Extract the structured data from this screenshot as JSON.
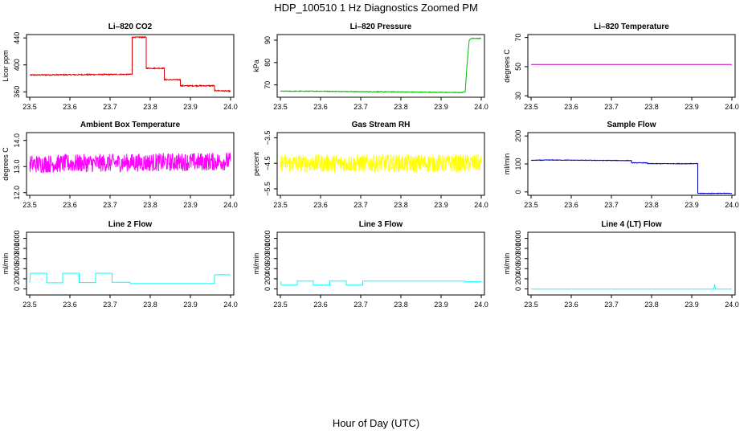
{
  "figure_title": "HDP_100510  1 Hz Diagnostics Zoomed PM",
  "footer_label": "Hour of Day (UTC)",
  "chart_data": [
    {
      "type": "line",
      "title": "Li–820 CO2",
      "ylabel": "Licor ppm",
      "color": "#e00000",
      "xlim": [
        23.5,
        24.0
      ],
      "ylim": [
        352,
        445
      ],
      "xticks": [
        23.5,
        23.6,
        23.7,
        23.8,
        23.9,
        24.0
      ],
      "yticks": [
        360,
        400,
        440
      ],
      "noise": 0.8,
      "series": [
        [
          23.5,
          385
        ],
        [
          23.755,
          386
        ],
        [
          23.755,
          441
        ],
        [
          23.79,
          441
        ],
        [
          23.79,
          395
        ],
        [
          23.835,
          395
        ],
        [
          23.835,
          378
        ],
        [
          23.875,
          378
        ],
        [
          23.875,
          369
        ],
        [
          23.96,
          369
        ],
        [
          23.96,
          362
        ],
        [
          24.0,
          361
        ]
      ]
    },
    {
      "type": "line",
      "title": "Li–820 Pressure",
      "ylabel": "kPa",
      "color": "#00c000",
      "xlim": [
        23.5,
        24.0
      ],
      "ylim": [
        64.5,
        92.5
      ],
      "xticks": [
        23.5,
        23.6,
        23.7,
        23.8,
        23.9,
        24.0
      ],
      "yticks": [
        70,
        80,
        90
      ],
      "noise": 0.15,
      "series": [
        [
          23.5,
          67.2
        ],
        [
          23.6,
          67.2
        ],
        [
          23.7,
          67.0
        ],
        [
          23.8,
          66.9
        ],
        [
          23.95,
          66.6
        ],
        [
          23.96,
          67.0
        ],
        [
          23.965,
          80
        ],
        [
          23.97,
          90
        ],
        [
          23.975,
          90.8
        ],
        [
          24.0,
          90.8
        ]
      ]
    },
    {
      "type": "line",
      "title": "Li–820 Temperature",
      "ylabel": "degrees C",
      "color": "#c000c0",
      "xlim": [
        23.5,
        24.0
      ],
      "ylim": [
        29,
        72
      ],
      "xticks": [
        23.5,
        23.6,
        23.7,
        23.8,
        23.9,
        24.0
      ],
      "yticks": [
        30,
        50,
        70
      ],
      "noise": 0,
      "series": [
        [
          23.5,
          51.5
        ],
        [
          24.0,
          51.5
        ]
      ]
    },
    {
      "type": "line",
      "title": "Ambient Box Temperature",
      "ylabel": "degrees C",
      "color": "#ff00ff",
      "xlim": [
        23.5,
        24.0
      ],
      "ylim": [
        11.9,
        14.3
      ],
      "xticks": [
        23.5,
        23.6,
        23.7,
        23.8,
        23.9,
        24.0
      ],
      "yticks": [
        12.0,
        13.0,
        14.0
      ],
      "noise": 0.35,
      "series": [
        [
          23.5,
          13.1
        ],
        [
          24.0,
          13.2
        ]
      ]
    },
    {
      "type": "line",
      "title": "Gas Stream RH",
      "ylabel": "percent",
      "color": "#ffff00",
      "xlim": [
        23.5,
        24.0
      ],
      "ylim": [
        -5.75,
        -3.3
      ],
      "xticks": [
        23.5,
        23.6,
        23.7,
        23.8,
        23.9,
        24.0
      ],
      "yticks": [
        -5.5,
        -4.5,
        -3.5
      ],
      "noise": 0.35,
      "series": [
        [
          23.5,
          -4.5
        ],
        [
          24.0,
          -4.5
        ]
      ]
    },
    {
      "type": "line",
      "title": "Sample Flow",
      "ylabel": "ml/min",
      "color": "#0000cc",
      "xlim": [
        23.5,
        24.0
      ],
      "ylim": [
        -12,
        212
      ],
      "xticks": [
        23.5,
        23.6,
        23.7,
        23.8,
        23.9,
        24.0
      ],
      "yticks": [
        0,
        100,
        200
      ],
      "noise": 1,
      "series": [
        [
          23.5,
          113
        ],
        [
          23.55,
          114
        ],
        [
          23.65,
          113
        ],
        [
          23.75,
          112
        ],
        [
          23.75,
          104
        ],
        [
          23.79,
          104
        ],
        [
          23.79,
          101
        ],
        [
          23.915,
          101
        ],
        [
          23.915,
          -5
        ],
        [
          24.0,
          -5
        ]
      ]
    },
    {
      "type": "line",
      "title": "Line 2 Flow",
      "ylabel": "ml/min",
      "color": "#00ffff",
      "xlim": [
        23.5,
        24.0
      ],
      "ylim": [
        -120,
        1120
      ],
      "xticks": [
        23.5,
        23.6,
        23.7,
        23.8,
        23.9,
        24.0
      ],
      "yticks": [
        0,
        200,
        400,
        600,
        800,
        1000
      ],
      "noise": 0,
      "series": [
        [
          23.5,
          125
        ],
        [
          23.502,
          310
        ],
        [
          23.542,
          310
        ],
        [
          23.542,
          120
        ],
        [
          23.582,
          120
        ],
        [
          23.582,
          310
        ],
        [
          23.623,
          310
        ],
        [
          23.623,
          125
        ],
        [
          23.664,
          125
        ],
        [
          23.664,
          310
        ],
        [
          23.705,
          310
        ],
        [
          23.705,
          130
        ],
        [
          23.75,
          130
        ],
        [
          23.75,
          105
        ],
        [
          23.96,
          105
        ],
        [
          23.96,
          280
        ],
        [
          24.0,
          280
        ]
      ]
    },
    {
      "type": "line",
      "title": "Line 3 Flow",
      "ylabel": "ml/min",
      "color": "#00ffff",
      "xlim": [
        23.5,
        24.0
      ],
      "ylim": [
        -120,
        1120
      ],
      "xticks": [
        23.5,
        23.6,
        23.7,
        23.8,
        23.9,
        24.0
      ],
      "yticks": [
        0,
        200,
        400,
        600,
        800,
        1000
      ],
      "noise": 0,
      "series": [
        [
          23.5,
          150
        ],
        [
          23.502,
          75
        ],
        [
          23.542,
          75
        ],
        [
          23.542,
          155
        ],
        [
          23.582,
          155
        ],
        [
          23.582,
          75
        ],
        [
          23.623,
          75
        ],
        [
          23.623,
          155
        ],
        [
          23.664,
          155
        ],
        [
          23.664,
          75
        ],
        [
          23.705,
          75
        ],
        [
          23.705,
          155
        ],
        [
          23.96,
          155
        ],
        [
          23.96,
          140
        ],
        [
          24.0,
          140
        ]
      ]
    },
    {
      "type": "line",
      "title": "Line 4 (LT) Flow",
      "ylabel": "ml/min",
      "color": "#00ffff",
      "xlim": [
        23.5,
        24.0
      ],
      "ylim": [
        -120,
        1120
      ],
      "xticks": [
        23.5,
        23.6,
        23.7,
        23.8,
        23.9,
        24.0
      ],
      "yticks": [
        0,
        200,
        400,
        600,
        800,
        1000
      ],
      "noise": 0,
      "series": [
        [
          23.5,
          -5
        ],
        [
          23.955,
          -5
        ],
        [
          23.957,
          90
        ],
        [
          23.959,
          -5
        ],
        [
          24.0,
          -5
        ]
      ]
    }
  ]
}
